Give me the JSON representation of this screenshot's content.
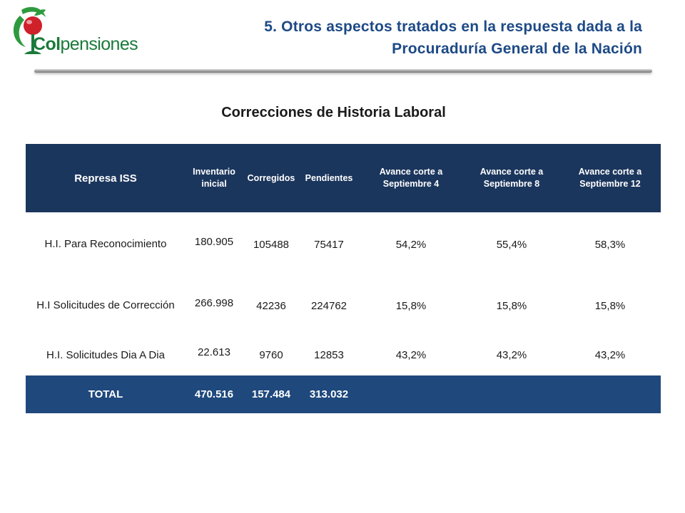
{
  "logo": {
    "text_strong": "Col",
    "text_rest": "pensiones"
  },
  "header": {
    "title_line1": "5. Otros aspectos tratados en la respuesta dada a la",
    "title_line2": "Procuraduría General de la Nación"
  },
  "section_title": "Correcciones de Historia Laboral",
  "table": {
    "headers": [
      "Represa ISS",
      "Inventario inicial",
      "Corregidos",
      "Pendientes",
      "Avance corte a Septiembre 4",
      "Avance corte a Septiembre 8",
      "Avance corte a Septiembre 12"
    ],
    "rows": [
      {
        "label": "H.I. Para Reconocimiento",
        "inventario": "180.905",
        "corregidos": "105488",
        "pendientes": "75417",
        "avance4": "54,2%",
        "avance8": "55,4%",
        "avance12": "58,3%"
      },
      {
        "label": "H.I  Solicitudes de Corrección",
        "inventario": "266.998",
        "corregidos": "42236",
        "pendientes": "224762",
        "avance4": "15,8%",
        "avance8": "15,8%",
        "avance12": "15,8%"
      },
      {
        "label": "H.I. Solicitudes Dia A Dia",
        "inventario": "22.613",
        "corregidos": "9760",
        "pendientes": "12853",
        "avance4": "43,2%",
        "avance8": "43,2%",
        "avance12": "43,2%"
      }
    ],
    "total": {
      "label": "TOTAL",
      "inventario": "470.516",
      "corregidos": "157.484",
      "pendientes": "313.032"
    }
  },
  "colors": {
    "header_bg": "#1b365d",
    "total_bg": "#1f497d",
    "title_blue": "#1d4a86",
    "logo_green": "#1a7a3a",
    "logo_red": "#d0202a"
  }
}
